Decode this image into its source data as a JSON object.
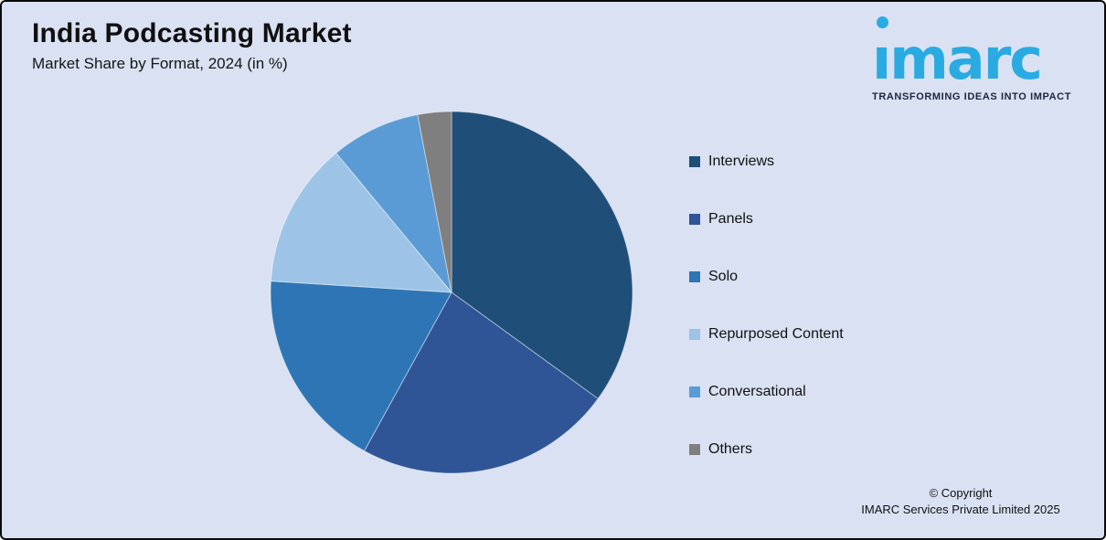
{
  "header": {
    "title": "India Podcasting Market",
    "subtitle": "Market Share by Format, 2024 (in %)"
  },
  "logo": {
    "brand": "imarc",
    "brand_dotless": "ımarc",
    "tagline": "TRANSFORMING IDEAS INTO IMPACT",
    "brand_color": "#29abe2",
    "tagline_color": "#1c2740"
  },
  "chart_data": {
    "type": "pie",
    "title": "India Podcasting Market",
    "subtitle": "Market Share by Format, 2024 (in %)",
    "unit": "percent",
    "categories": [
      "Interviews",
      "Panels",
      "Solo",
      "Repurposed Content",
      "Conversational",
      "Others"
    ],
    "values": [
      35,
      23,
      18,
      13,
      8,
      3
    ],
    "colors": [
      "#1f4e79",
      "#2f5597",
      "#2e75b6",
      "#9dc3e6",
      "#5b9bd5",
      "#7f7f7f"
    ],
    "start_angle_deg": 0,
    "direction": "clockwise",
    "legend_position": "right",
    "data_labels": false
  },
  "footer": {
    "copyright_line1": "© Copyright",
    "copyright_line2": "IMARC Services Private Limited 2025"
  },
  "page": {
    "background": "#d9e1f2",
    "border_color": "#0a0a0a"
  }
}
